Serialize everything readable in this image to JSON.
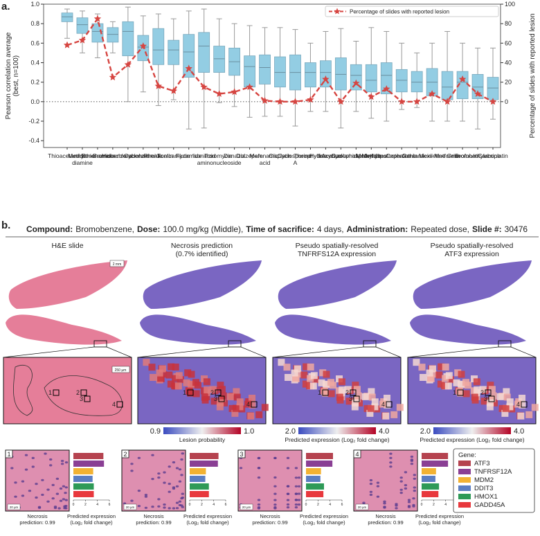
{
  "panel_labels": [
    "a.",
    "b."
  ],
  "chart_data": [
    {
      "type": "box",
      "categories": [
        "Thioacetamide",
        "Methylene diamine",
        "Ethionamide",
        "Bromobenzene",
        "Hexachlorobenzene",
        "Cycloheximide",
        "Phenacetin",
        "Tunicamycin",
        "Flutamide",
        "Isoniazid",
        "Puromycin aminonucleoside",
        "Danazol",
        "Diazepam",
        "Mefenamic acid",
        "Cisplatin",
        "Cyclosporine A",
        "Theophylline",
        "Hydroxyzine",
        "Acetazolamide",
        "Cyclophosphamide",
        "Methyldopa",
        "Methyltestosterone",
        "Cephalothin",
        "Gentamicin",
        "Mexiletine",
        "Metformin",
        "Griseofulvin",
        "Bromoethylamine",
        "Carboplatin"
      ],
      "boxes": [
        {
          "whislo": 0.65,
          "q1": 0.82,
          "med": 0.87,
          "q3": 0.91,
          "whishi": 0.95
        },
        {
          "whislo": 0.5,
          "q1": 0.7,
          "med": 0.79,
          "q3": 0.86,
          "whishi": 0.93
        },
        {
          "whislo": 0.45,
          "q1": 0.61,
          "med": 0.72,
          "q3": 0.8,
          "whishi": 0.9
        },
        {
          "whislo": 0.5,
          "q1": 0.61,
          "med": 0.69,
          "q3": 0.76,
          "whishi": 0.82
        },
        {
          "whislo": 0.0,
          "q1": 0.47,
          "med": 0.72,
          "q3": 0.82,
          "whishi": 0.97
        },
        {
          "whislo": 0.1,
          "q1": 0.42,
          "med": 0.56,
          "q3": 0.68,
          "whishi": 0.88
        },
        {
          "whislo": -0.04,
          "q1": 0.38,
          "med": 0.53,
          "q3": 0.75,
          "whishi": 0.9
        },
        {
          "whislo": 0.02,
          "q1": 0.38,
          "med": 0.53,
          "q3": 0.63,
          "whishi": 0.85
        },
        {
          "whislo": -0.28,
          "q1": 0.25,
          "med": 0.51,
          "q3": 0.69,
          "whishi": 0.93
        },
        {
          "whislo": -0.27,
          "q1": 0.3,
          "med": 0.57,
          "q3": 0.71,
          "whishi": 0.95
        },
        {
          "whislo": -0.01,
          "q1": 0.3,
          "med": 0.44,
          "q3": 0.57,
          "whishi": 0.85
        },
        {
          "whislo": -0.05,
          "q1": 0.27,
          "med": 0.41,
          "q3": 0.55,
          "whishi": 0.8
        },
        {
          "whislo": -0.16,
          "q1": 0.15,
          "med": 0.36,
          "q3": 0.47,
          "whishi": 0.78
        },
        {
          "whislo": -0.15,
          "q1": 0.18,
          "med": 0.35,
          "q3": 0.48,
          "whishi": 0.76
        },
        {
          "whislo": -0.15,
          "q1": 0.15,
          "med": 0.3,
          "q3": 0.46,
          "whishi": 0.76
        },
        {
          "whislo": -0.25,
          "q1": 0.12,
          "med": 0.3,
          "q3": 0.48,
          "whishi": 0.74
        },
        {
          "whislo": -0.1,
          "q1": 0.15,
          "med": 0.3,
          "q3": 0.4,
          "whishi": 0.6
        },
        {
          "whislo": -0.1,
          "q1": 0.15,
          "med": 0.3,
          "q3": 0.42,
          "whishi": 0.72
        },
        {
          "whislo": -0.27,
          "q1": 0.12,
          "med": 0.28,
          "q3": 0.45,
          "whishi": 0.75
        },
        {
          "whislo": -0.1,
          "q1": 0.12,
          "med": 0.27,
          "q3": 0.38,
          "whishi": 0.62
        },
        {
          "whislo": -0.17,
          "q1": 0.1,
          "med": 0.22,
          "q3": 0.38,
          "whishi": 0.76
        },
        {
          "whislo": -0.2,
          "q1": 0.08,
          "med": 0.27,
          "q3": 0.4,
          "whishi": 0.72
        },
        {
          "whislo": -0.08,
          "q1": 0.1,
          "med": 0.22,
          "q3": 0.33,
          "whishi": 0.6
        },
        {
          "whislo": -0.06,
          "q1": 0.1,
          "med": 0.2,
          "q3": 0.31,
          "whishi": 0.5
        },
        {
          "whislo": -0.2,
          "q1": 0.06,
          "med": 0.2,
          "q3": 0.34,
          "whishi": 0.6
        },
        {
          "whislo": -0.2,
          "q1": 0.02,
          "med": 0.15,
          "q3": 0.31,
          "whishi": 0.72
        },
        {
          "whislo": -0.2,
          "q1": 0.03,
          "med": 0.2,
          "q3": 0.31,
          "whishi": 0.6
        },
        {
          "whislo": -0.28,
          "q1": 0.03,
          "med": 0.15,
          "q3": 0.28,
          "whishi": 0.55
        },
        {
          "whislo": -0.18,
          "q1": 0.02,
          "med": 0.14,
          "q3": 0.25,
          "whishi": 0.55
        }
      ],
      "box_color": "#93cde3",
      "line": {
        "name": "Percentage of slides with reported lesion",
        "color": "#d64541",
        "axis": "y2",
        "values": [
          58,
          63,
          85,
          25,
          38,
          57,
          16,
          11,
          34,
          15,
          8,
          10,
          15,
          1,
          0,
          0,
          2,
          23,
          0,
          19,
          5,
          13,
          0,
          0,
          8,
          0,
          23,
          8,
          0
        ]
      },
      "ylabel": [
        "Pearson correlation average",
        "(best, n=100)"
      ],
      "y2label": "Percentage of slides with reported lesion",
      "ylim": [
        -0.47,
        1.0
      ],
      "yticks": [
        -0.4,
        -0.2,
        {
          "value": 0,
          "label": "0.0"
        },
        0.2,
        0.4,
        0.6,
        0.8,
        {
          "value": 1,
          "label": "1.0"
        }
      ],
      "y2lim": [
        -47,
        100
      ],
      "y2ticks": [
        0,
        20,
        40,
        60,
        80,
        100
      ],
      "hline": 0,
      "legend": "upper right"
    },
    {
      "type": "bar",
      "orientation": "horizontal",
      "legend_title": "Gene:",
      "categories": [
        "ATF3",
        "TNFRSF12A",
        "MDM2",
        "DDIT3",
        "HMOX1",
        "GADD45A"
      ],
      "colors": [
        "#b5434f",
        "#8a3f94",
        "#f2b233",
        "#5b7ec2",
        "#2e9a57",
        "#e8383d"
      ],
      "xlim": [
        0,
        6
      ],
      "xticks": [
        0,
        2,
        4,
        6
      ],
      "xlabel": [
        "Predicted expression",
        "(Log₂ fold change)"
      ],
      "series": [
        {
          "name": "1",
          "annotation": [
            "Necrosis",
            "prediction: 0.99"
          ],
          "values": [
            5.0,
            5.1,
            3.3,
            3.2,
            3.4,
            3.4
          ]
        },
        {
          "name": "2",
          "annotation": [
            "Necrosis",
            "prediction: 0.99"
          ],
          "values": [
            4.8,
            4.7,
            2.7,
            2.6,
            3.2,
            3.2
          ]
        },
        {
          "name": "3",
          "annotation": [
            "Necrosis",
            "prediction: 0.99"
          ],
          "values": [
            4.5,
            4.4,
            2.5,
            2.4,
            3.0,
            2.9
          ]
        },
        {
          "name": "4",
          "annotation": [
            "Necrosis",
            "prediction: 0.99"
          ],
          "values": [
            4.4,
            4.4,
            2.4,
            2.3,
            2.9,
            2.8
          ]
        }
      ]
    }
  ],
  "header": {
    "items": [
      {
        "key": "Compound:",
        "value": "Bromobenzene,"
      },
      {
        "key": "Dose:",
        "value": "100.0 mg/kg (Middle),"
      },
      {
        "key": "Time of sacrifice:",
        "value": "4 days,"
      },
      {
        "key": "Administration:",
        "value": "Repeated dose,"
      },
      {
        "key": "Slide #:",
        "value": "30476"
      }
    ]
  },
  "columns": [
    {
      "title": [
        "H&E slide"
      ]
    },
    {
      "title": [
        "Necrosis prediction",
        "(0.7% identified)"
      ],
      "colorbar": {
        "label": "Lesion probability",
        "lim": [
          0.9,
          1
        ],
        "ticks": [
          0.9,
          {
            "value": 1,
            "label": "1.0"
          }
        ]
      }
    },
    {
      "title": [
        "Pseudo spatially-resolved",
        "TNFRFS12A expression"
      ],
      "colorbar": {
        "label": "Predicted expression (Log₂ fold change)",
        "lim": [
          2,
          4
        ],
        "ticks": [
          {
            "value": 2,
            "label": "2.0"
          },
          {
            "value": 4,
            "label": "4.0"
          }
        ]
      }
    },
    {
      "title": [
        "Pseudo spatially-resolved",
        "ATF3 expression"
      ],
      "colorbar": {
        "label": "Predicted expression (Log₂ fold change)",
        "lim": [
          2,
          4
        ],
        "ticks": [
          {
            "value": 2,
            "label": "2.0"
          },
          {
            "value": 4,
            "label": "4.0"
          }
        ]
      }
    }
  ],
  "scale_bars": {
    "slide": "2 mm",
    "inset": "250 µm",
    "patch": "20 µm"
  }
}
